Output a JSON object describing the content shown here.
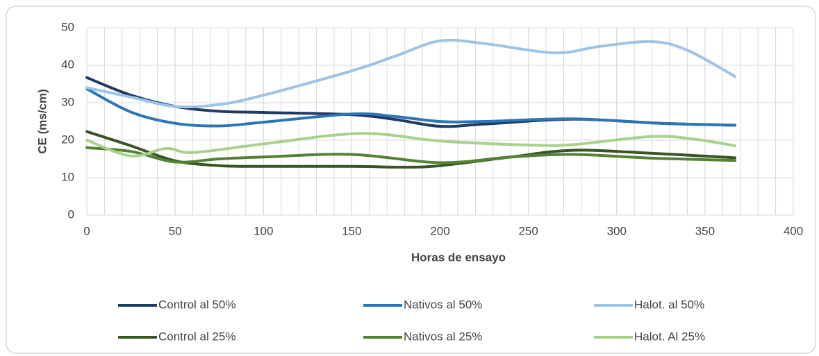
{
  "chart_data": {
    "type": "line",
    "xlabel": "Horas de ensayo",
    "ylabel": "CE (ms/cm)",
    "xlim": [
      0,
      400
    ],
    "xticks": [
      0,
      50,
      100,
      150,
      200,
      250,
      300,
      350,
      400
    ],
    "x_minor_step": 10,
    "ylim": [
      0,
      50
    ],
    "yticks": [
      0,
      10,
      20,
      30,
      40,
      50
    ],
    "grid": true,
    "smooth": true,
    "legend": "bottom",
    "series": [
      {
        "name": "Control al 50%",
        "color": "#1f3a63",
        "x": [
          0,
          25,
          50,
          75,
          100,
          150,
          175,
          200,
          225,
          275,
          325,
          367
        ],
        "values": [
          36.7,
          32,
          29,
          27.7,
          27.4,
          26.8,
          25.5,
          23.7,
          24.3,
          25.6,
          24.5,
          24
        ]
      },
      {
        "name": "Nativos al 50%",
        "color": "#2e75b6",
        "x": [
          0,
          25,
          50,
          75,
          100,
          150,
          175,
          200,
          225,
          275,
          325,
          367
        ],
        "values": [
          33.7,
          27.5,
          24.5,
          23.8,
          24.8,
          27,
          26.3,
          25,
          25,
          25.7,
          24.5,
          24
        ]
      },
      {
        "name": "Halot. al 50%",
        "color": "#9dc3e6",
        "x": [
          0,
          25,
          50,
          75,
          100,
          150,
          175,
          200,
          225,
          265,
          290,
          320,
          340,
          367
        ],
        "values": [
          34,
          31.5,
          29,
          29.5,
          32,
          38.5,
          42.5,
          46.5,
          45.8,
          43.3,
          45,
          46.3,
          44,
          37
        ]
      },
      {
        "name": "Control al 25%",
        "color": "#375623",
        "x": [
          0,
          25,
          50,
          75,
          100,
          150,
          180,
          200,
          240,
          275,
          320,
          367
        ],
        "values": [
          22.3,
          18.5,
          14.5,
          13.2,
          13,
          13,
          12.8,
          13.2,
          15.5,
          17.3,
          16.5,
          15.3
        ]
      },
      {
        "name": "Nativos al 25%",
        "color": "#548235",
        "x": [
          0,
          25,
          50,
          75,
          100,
          150,
          200,
          240,
          275,
          320,
          367
        ],
        "values": [
          18,
          17,
          14.2,
          15,
          15.5,
          16.2,
          14,
          15.5,
          16.2,
          15.2,
          14.6
        ]
      },
      {
        "name": "Halot. Al 25%",
        "color": "#a9d18e",
        "x": [
          0,
          25,
          45,
          60,
          100,
          155,
          200,
          250,
          275,
          320,
          345,
          367
        ],
        "values": [
          20,
          15.8,
          17.8,
          16.7,
          19,
          21.8,
          19.8,
          18.7,
          18.8,
          21,
          20.2,
          18.5
        ]
      }
    ]
  }
}
